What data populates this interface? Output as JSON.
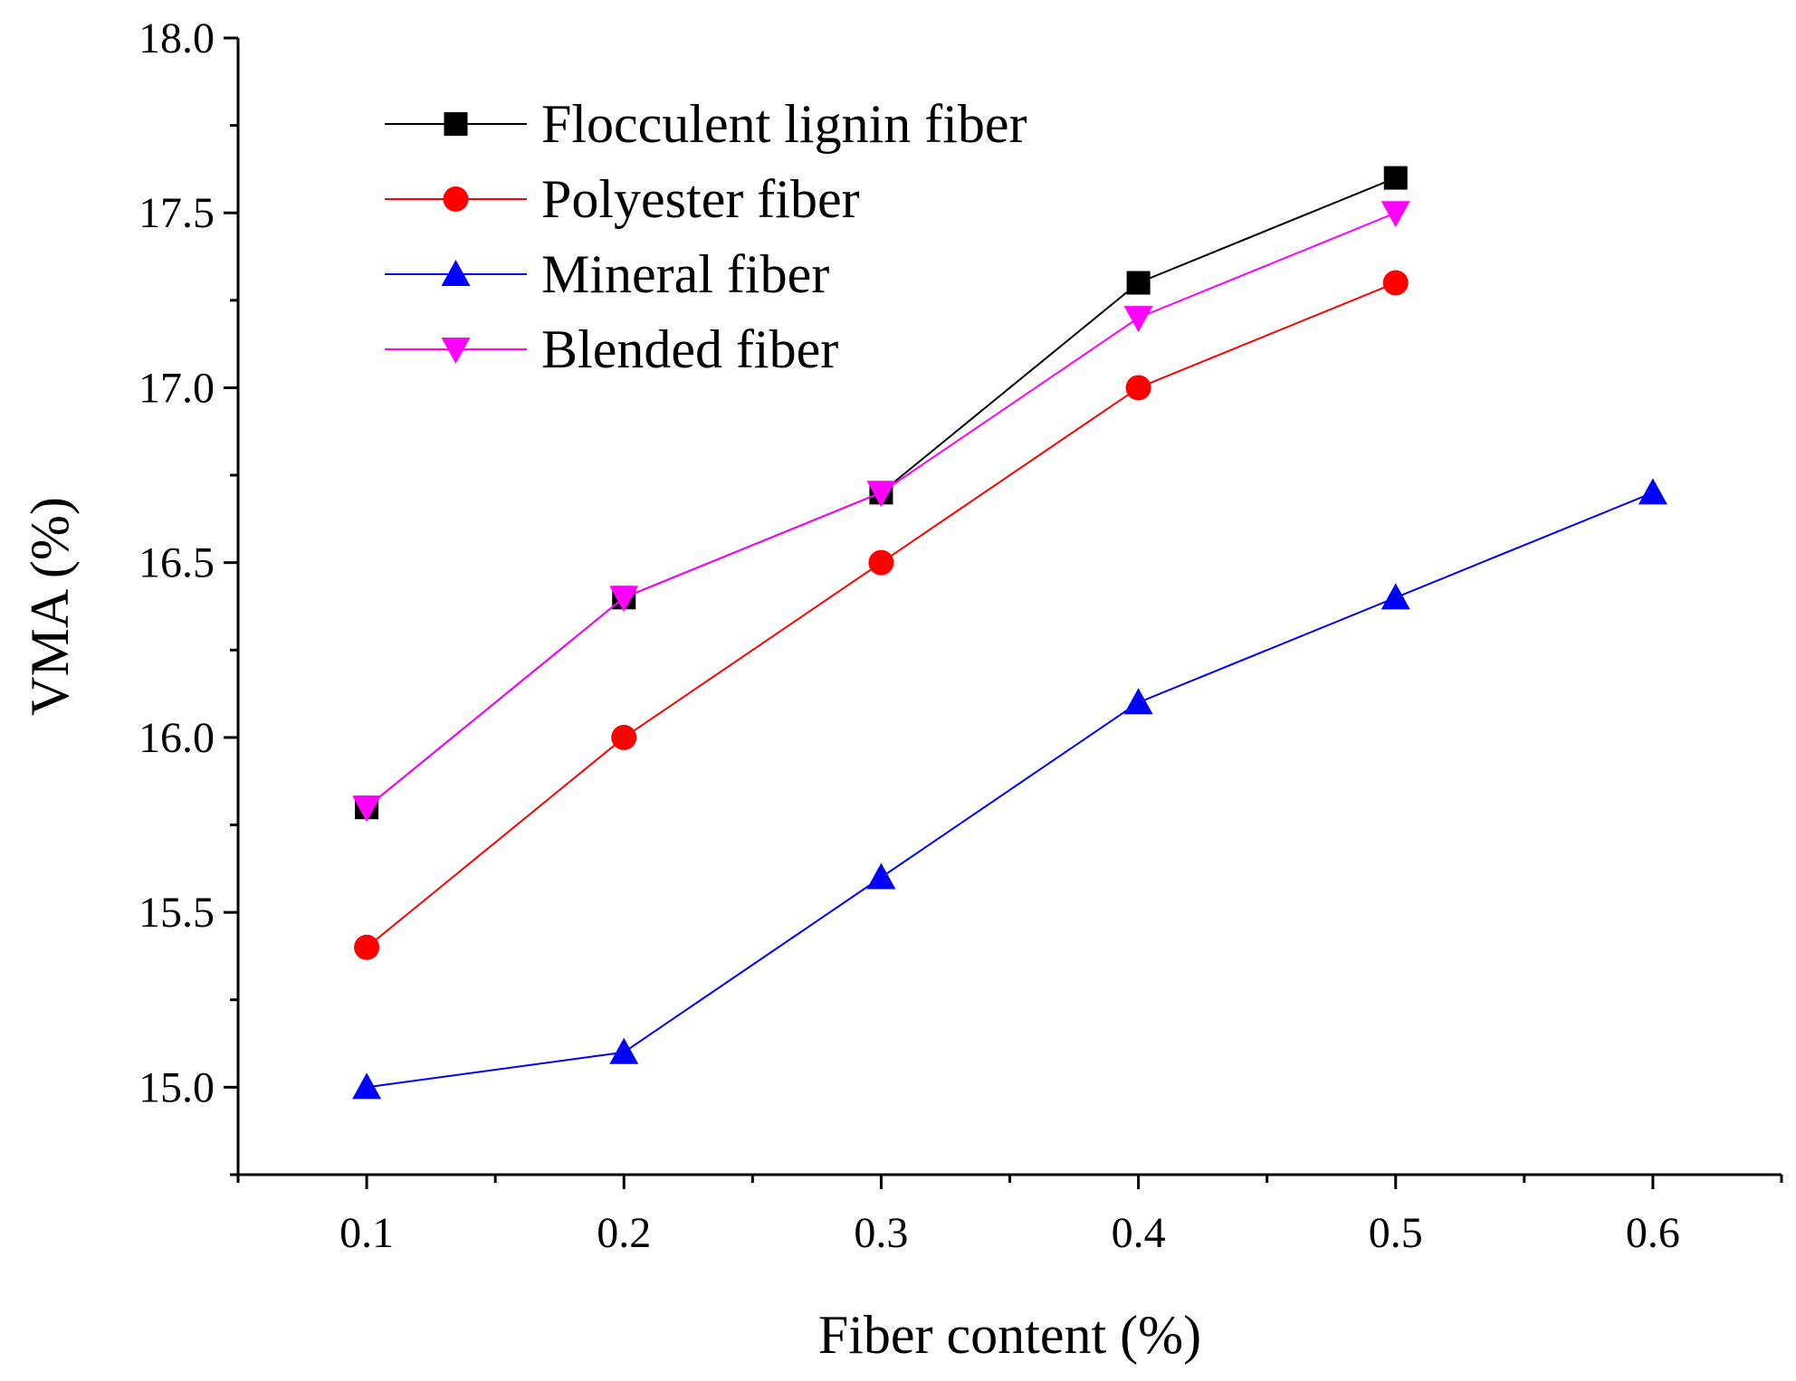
{
  "chart_data": {
    "type": "line",
    "title": "",
    "xlabel": "Fiber content (%)",
    "ylabel": "VMA (%)",
    "xlim": [
      0.05,
      0.65
    ],
    "ylim": [
      14.75,
      18.0
    ],
    "xticks": [
      0.1,
      0.2,
      0.3,
      0.4,
      0.5,
      0.6
    ],
    "xtick_labels": [
      "0.1",
      "0.2",
      "0.3",
      "0.4",
      "0.5",
      "0.6"
    ],
    "yticks": [
      15.0,
      15.5,
      16.0,
      16.5,
      17.0,
      17.5,
      18.0
    ],
    "ytick_labels": [
      "15.0",
      "15.5",
      "16.0",
      "16.5",
      "17.0",
      "17.5",
      "18.0"
    ],
    "grid": false,
    "legend_position": "top-left",
    "series": [
      {
        "name": "Flocculent lignin fiber",
        "color": "#000000",
        "marker": "square",
        "x": [
          0.1,
          0.2,
          0.3,
          0.4,
          0.5
        ],
        "values": [
          15.8,
          16.4,
          16.7,
          17.3,
          17.6
        ]
      },
      {
        "name": "Polyester fiber",
        "color": "#ff0000",
        "marker": "circle",
        "x": [
          0.1,
          0.2,
          0.3,
          0.4,
          0.5
        ],
        "values": [
          15.4,
          16.0,
          16.5,
          17.0,
          17.3
        ]
      },
      {
        "name": "Mineral fiber",
        "color": "#0000ff",
        "marker": "triangle-up",
        "x": [
          0.1,
          0.2,
          0.3,
          0.4,
          0.5,
          0.6
        ],
        "values": [
          15.0,
          15.1,
          15.6,
          16.1,
          16.4,
          16.7
        ]
      },
      {
        "name": "Blended fiber",
        "color": "#ff00ff",
        "marker": "triangle-down",
        "x": [
          0.1,
          0.2,
          0.3,
          0.4,
          0.5
        ],
        "values": [
          15.8,
          16.4,
          16.7,
          17.2,
          17.5
        ]
      }
    ]
  }
}
